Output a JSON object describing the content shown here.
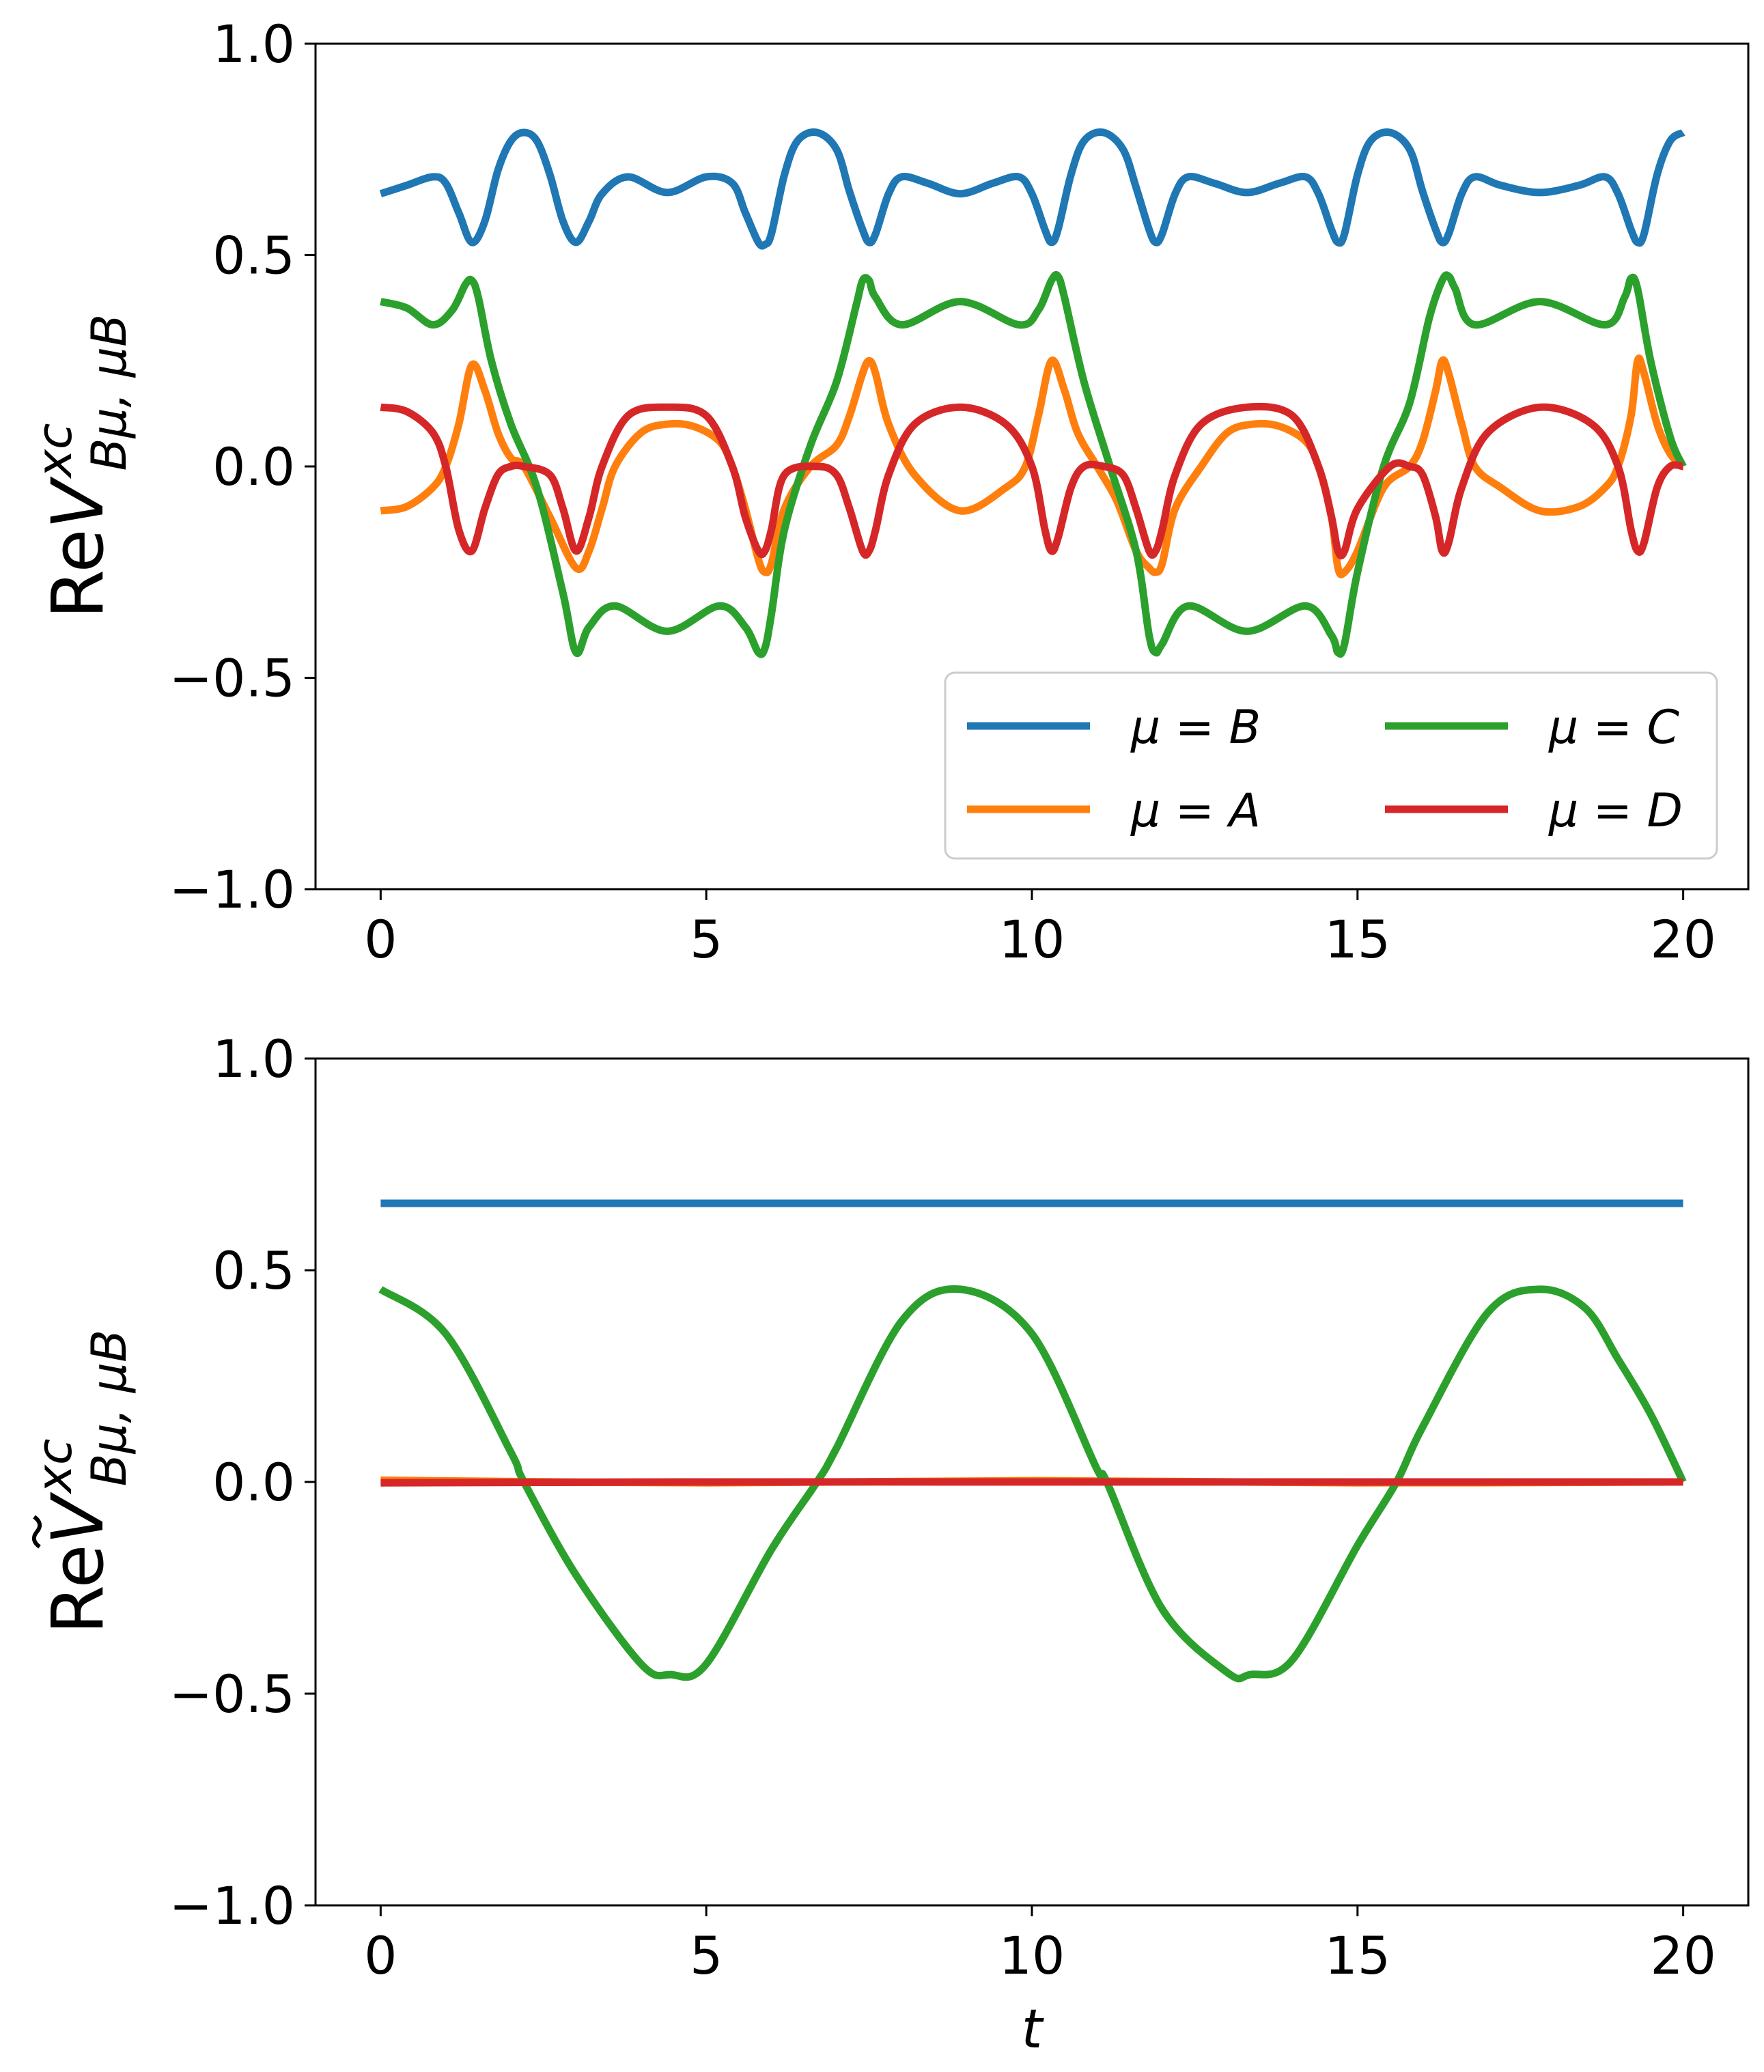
{
  "colors": {
    "mu_B": "#1f77b4",
    "mu_A": "#ff7f0e",
    "mu_C": "#2ca02c",
    "mu_D": "#d62728"
  },
  "chart_data": [
    {
      "type": "line",
      "id": "top",
      "ylabel": {
        "prefix": "Re",
        "symbol": "V",
        "tilde": false,
        "superscript": "xc",
        "subscript": "Bμ, μB"
      },
      "xlabel": "",
      "xlim": [
        -1,
        21
      ],
      "ylim": [
        -1.0,
        1.0
      ],
      "xticks": [
        0,
        5,
        10,
        15,
        20
      ],
      "xtick_labels": [
        "0",
        "5",
        "10",
        "15",
        "20"
      ],
      "yticks": [
        -1.0,
        -0.5,
        0.0,
        0.5,
        1.0
      ],
      "ytick_labels": [
        "−1.0",
        "−0.5",
        "0.0",
        "0.5",
        "1.0"
      ],
      "grid": false,
      "legend": {
        "placement": "lower-right",
        "columns": 2
      },
      "series": [
        {
          "name": "μ = B",
          "color_key": "mu_B",
          "x": [
            0,
            0.4,
            0.8,
            1.0,
            1.2,
            1.4,
            1.6,
            1.8,
            2.0,
            2.2,
            2.4,
            2.6,
            2.8,
            3.0,
            3.2,
            3.4,
            3.8,
            4.4,
            5.0,
            5.4,
            5.6,
            5.8,
            5.9,
            6.0,
            6.2,
            6.4,
            6.7,
            7.0,
            7.2,
            7.4,
            7.5,
            7.6,
            7.8,
            8.0,
            8.4,
            8.9,
            9.4,
            9.8,
            10.0,
            10.2,
            10.3,
            10.4,
            10.6,
            10.8,
            11.1,
            11.4,
            11.6,
            11.8,
            11.9,
            12.0,
            12.2,
            12.4,
            12.8,
            13.3,
            13.8,
            14.2,
            14.4,
            14.6,
            14.7,
            14.8,
            15.0,
            15.2,
            15.5,
            15.8,
            16.0,
            16.2,
            16.3,
            16.4,
            16.6,
            16.8,
            17.2,
            17.8,
            18.4,
            18.8,
            19.0,
            19.2,
            19.3,
            19.4,
            19.6,
            19.8,
            20.0
          ],
          "y": [
            0.645,
            0.665,
            0.685,
            0.67,
            0.6,
            0.53,
            0.58,
            0.7,
            0.77,
            0.79,
            0.77,
            0.69,
            0.58,
            0.53,
            0.58,
            0.645,
            0.685,
            0.648,
            0.685,
            0.67,
            0.6,
            0.53,
            0.525,
            0.55,
            0.69,
            0.77,
            0.79,
            0.75,
            0.65,
            0.56,
            0.53,
            0.55,
            0.645,
            0.685,
            0.67,
            0.645,
            0.67,
            0.685,
            0.645,
            0.56,
            0.53,
            0.56,
            0.69,
            0.77,
            0.79,
            0.75,
            0.66,
            0.56,
            0.53,
            0.55,
            0.645,
            0.685,
            0.67,
            0.648,
            0.67,
            0.685,
            0.645,
            0.56,
            0.53,
            0.55,
            0.69,
            0.77,
            0.79,
            0.75,
            0.65,
            0.56,
            0.53,
            0.55,
            0.645,
            0.685,
            0.665,
            0.648,
            0.665,
            0.685,
            0.645,
            0.56,
            0.53,
            0.55,
            0.69,
            0.77,
            0.79
          ]
        },
        {
          "name": "μ = A",
          "color_key": "mu_A",
          "x": [
            0,
            0.4,
            0.8,
            1.0,
            1.2,
            1.4,
            1.6,
            1.8,
            2.0,
            2.2,
            2.6,
            3.0,
            3.2,
            3.4,
            3.6,
            4.0,
            4.4,
            4.8,
            5.2,
            5.4,
            5.6,
            5.8,
            5.9,
            6.0,
            6.2,
            6.6,
            7.0,
            7.2,
            7.4,
            7.5,
            7.6,
            7.8,
            8.2,
            8.9,
            9.6,
            9.9,
            10.1,
            10.3,
            10.5,
            10.7,
            11.0,
            11.3,
            11.6,
            11.8,
            11.9,
            12.0,
            12.2,
            12.6,
            13.0,
            13.4,
            13.8,
            14.2,
            14.4,
            14.6,
            14.7,
            14.8,
            15.0,
            15.4,
            15.8,
            16.0,
            16.2,
            16.3,
            16.4,
            16.6,
            16.8,
            17.2,
            17.8,
            18.4,
            18.8,
            19.0,
            19.2,
            19.3,
            19.4,
            19.6,
            19.8,
            20.0
          ],
          "y": [
            -0.105,
            -0.095,
            -0.05,
            0.0,
            0.1,
            0.24,
            0.18,
            0.08,
            0.02,
            0.0,
            -0.12,
            -0.24,
            -0.2,
            -0.1,
            0.0,
            0.08,
            0.1,
            0.095,
            0.06,
            0.0,
            -0.1,
            -0.22,
            -0.25,
            -0.23,
            -0.1,
            0.0,
            0.05,
            0.12,
            0.22,
            0.25,
            0.22,
            0.1,
            -0.02,
            -0.105,
            -0.05,
            0.0,
            0.12,
            0.25,
            0.18,
            0.08,
            0.0,
            -0.08,
            -0.2,
            -0.24,
            -0.25,
            -0.23,
            -0.1,
            0.0,
            0.08,
            0.1,
            0.095,
            0.06,
            0.0,
            -0.12,
            -0.24,
            -0.25,
            -0.2,
            -0.05,
            0.0,
            0.06,
            0.18,
            0.25,
            0.22,
            0.1,
            0.0,
            -0.05,
            -0.105,
            -0.095,
            -0.05,
            0.0,
            0.12,
            0.25,
            0.22,
            0.1,
            0.03,
            0.0
          ]
        },
        {
          "name": "μ = C",
          "color_key": "mu_C",
          "x": [
            0,
            0.4,
            0.8,
            1.1,
            1.3,
            1.4,
            1.5,
            1.7,
            2.0,
            2.4,
            2.8,
            3.0,
            3.2,
            3.6,
            4.4,
            5.2,
            5.6,
            5.8,
            5.9,
            6.0,
            6.2,
            6.6,
            7.0,
            7.3,
            7.4,
            7.5,
            7.6,
            8.0,
            8.9,
            9.8,
            10.1,
            10.3,
            10.4,
            10.5,
            10.8,
            11.2,
            11.6,
            11.8,
            11.9,
            12.0,
            12.4,
            13.3,
            14.2,
            14.6,
            14.7,
            14.8,
            15.0,
            15.4,
            15.8,
            16.1,
            16.3,
            16.4,
            16.5,
            16.8,
            17.8,
            18.8,
            19.1,
            19.2,
            19.3,
            19.5,
            19.8,
            20.0
          ],
          "y": [
            0.39,
            0.375,
            0.335,
            0.37,
            0.43,
            0.44,
            0.4,
            0.25,
            0.1,
            -0.05,
            -0.3,
            -0.44,
            -0.38,
            -0.33,
            -0.39,
            -0.33,
            -0.38,
            -0.44,
            -0.43,
            -0.35,
            -0.15,
            0.05,
            0.2,
            0.38,
            0.44,
            0.44,
            0.4,
            0.335,
            0.39,
            0.335,
            0.37,
            0.44,
            0.45,
            0.4,
            0.2,
            0.0,
            -0.2,
            -0.4,
            -0.44,
            -0.42,
            -0.33,
            -0.39,
            -0.33,
            -0.4,
            -0.44,
            -0.42,
            -0.25,
            0.0,
            0.15,
            0.35,
            0.44,
            0.45,
            0.42,
            0.335,
            0.39,
            0.335,
            0.4,
            0.445,
            0.42,
            0.25,
            0.07,
            0.0
          ]
        },
        {
          "name": "μ = D",
          "color_key": "mu_D",
          "x": [
            0,
            0.4,
            0.8,
            1.0,
            1.2,
            1.4,
            1.6,
            1.8,
            2.0,
            2.2,
            2.6,
            2.8,
            3.0,
            3.2,
            3.4,
            3.8,
            4.4,
            5.0,
            5.4,
            5.6,
            5.8,
            5.9,
            6.0,
            6.2,
            6.7,
            7.0,
            7.2,
            7.4,
            7.5,
            7.6,
            7.8,
            8.2,
            8.9,
            9.6,
            10.0,
            10.2,
            10.3,
            10.4,
            10.6,
            10.8,
            11.1,
            11.4,
            11.6,
            11.8,
            11.9,
            12.0,
            12.2,
            12.6,
            13.3,
            14.0,
            14.4,
            14.6,
            14.7,
            14.8,
            15.0,
            15.5,
            15.8,
            16.0,
            16.2,
            16.3,
            16.4,
            16.6,
            17.0,
            17.8,
            18.6,
            19.0,
            19.2,
            19.3,
            19.4,
            19.6,
            19.8,
            20.0
          ],
          "y": [
            0.14,
            0.13,
            0.08,
            0.0,
            -0.15,
            -0.2,
            -0.1,
            -0.02,
            0.0,
            0.0,
            -0.02,
            -0.1,
            -0.2,
            -0.12,
            0.0,
            0.12,
            0.14,
            0.12,
            0.0,
            -0.12,
            -0.2,
            -0.2,
            -0.15,
            -0.02,
            0.0,
            -0.02,
            -0.1,
            -0.2,
            -0.2,
            -0.15,
            -0.02,
            0.1,
            0.14,
            0.1,
            0.0,
            -0.15,
            -0.2,
            -0.17,
            -0.05,
            0.0,
            0.0,
            -0.02,
            -0.1,
            -0.2,
            -0.2,
            -0.15,
            -0.02,
            0.1,
            0.14,
            0.12,
            0.0,
            -0.12,
            -0.2,
            -0.2,
            -0.1,
            0.0,
            0.0,
            -0.02,
            -0.12,
            -0.2,
            -0.18,
            -0.05,
            0.08,
            0.14,
            0.1,
            0.0,
            -0.15,
            -0.2,
            -0.18,
            -0.05,
            0.0,
            0.0
          ]
        }
      ]
    },
    {
      "type": "line",
      "id": "bottom",
      "ylabel": {
        "prefix": "Re",
        "symbol": "V",
        "tilde": true,
        "superscript": "xc",
        "subscript": "Bμ, μB"
      },
      "xlabel": "t",
      "xlim": [
        -1,
        21
      ],
      "ylim": [
        -1.0,
        1.0
      ],
      "xticks": [
        0,
        5,
        10,
        15,
        20
      ],
      "xtick_labels": [
        "0",
        "5",
        "10",
        "15",
        "20"
      ],
      "yticks": [
        -1.0,
        -0.5,
        0.0,
        0.5,
        1.0
      ],
      "ytick_labels": [
        "−1.0",
        "−0.5",
        "0.0",
        "0.5",
        "1.0"
      ],
      "grid": false,
      "legend": null,
      "series": [
        {
          "color_key": "mu_B",
          "x": [
            0,
            20
          ],
          "y": [
            0.658,
            0.658
          ]
        },
        {
          "color_key": "mu_A",
          "x": [
            0,
            5,
            10,
            15,
            20
          ],
          "y": [
            0.004,
            -0.002,
            0.003,
            -0.002,
            0.0
          ]
        },
        {
          "color_key": "mu_C",
          "x": [
            0,
            1,
            2,
            2.2,
            3,
            4,
            4.45,
            5,
            6,
            6.7,
            7,
            8,
            8.9,
            10,
            11,
            11.15,
            12,
            13,
            13.35,
            14,
            15,
            15.6,
            16,
            17,
            17.8,
            18.5,
            19,
            19.5,
            20
          ],
          "y": [
            0.455,
            0.35,
            0.07,
            0.0,
            -0.22,
            -0.43,
            -0.455,
            -0.43,
            -0.16,
            0.0,
            0.08,
            0.38,
            0.455,
            0.35,
            0.03,
            0.0,
            -0.3,
            -0.45,
            -0.455,
            -0.42,
            -0.15,
            0.0,
            0.13,
            0.4,
            0.455,
            0.41,
            0.29,
            0.16,
            0.0
          ]
        },
        {
          "color_key": "mu_D",
          "x": [
            0,
            5,
            10,
            15,
            20
          ],
          "y": [
            -0.002,
            0.0,
            0.0,
            0.0,
            0.0
          ]
        }
      ]
    }
  ]
}
